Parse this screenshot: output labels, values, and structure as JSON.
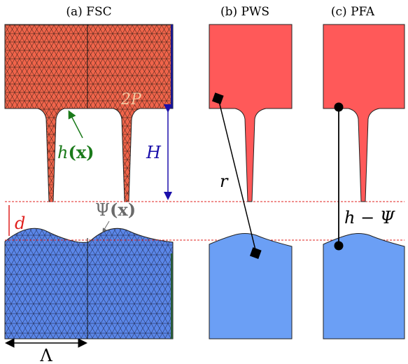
{
  "panels": [
    {
      "title": "(a) FSC"
    },
    {
      "title": "(b) PWS"
    },
    {
      "title": "(c) PFA"
    }
  ],
  "labels": {
    "two_p": "2P",
    "h_x_h": "h",
    "h_x_arg": "(x)",
    "H": "H",
    "d": "d",
    "psi_sym": "Ψ",
    "psi_arg": "(x)",
    "lambda": "Λ",
    "r": "r",
    "h_minus_psi": "h − Ψ"
  },
  "colors": {
    "upper_mesh": "#f0644a",
    "upper_solid": "#ff5959",
    "lower_mesh": "#5a86e8",
    "lower_solid": "#6b9ff5",
    "green_label": "#1a7a1a",
    "blue_label": "#1a0faa",
    "red_label": "#e0201e",
    "gray_label": "#6a6a6a",
    "two_p_label": "#f5c8a0"
  }
}
